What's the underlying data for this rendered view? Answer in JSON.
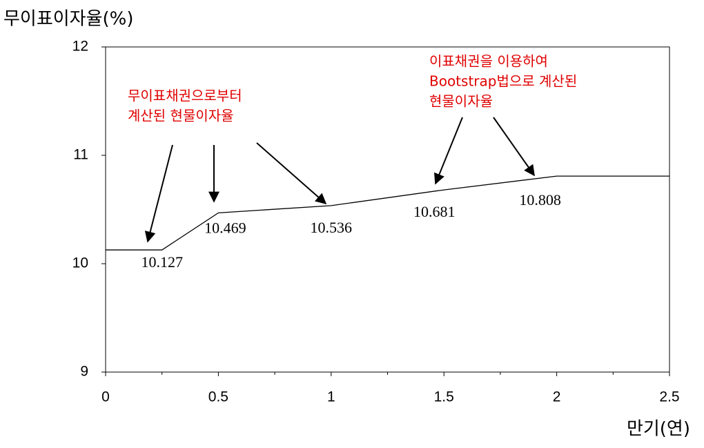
{
  "chart_data": {
    "type": "line",
    "y_label": "무이표이자율(%)",
    "x_label": "만기(연)",
    "x": [
      0,
      0.25,
      0.5,
      1,
      1.5,
      2,
      2.5
    ],
    "values": [
      10.127,
      10.127,
      10.469,
      10.536,
      10.681,
      10.808,
      10.808
    ],
    "value_labels": [
      null,
      "10.127",
      "10.469",
      "10.536",
      "10.681",
      "10.808",
      null
    ],
    "color": "#000000",
    "xlim": [
      0,
      2.5
    ],
    "xticks": [
      0,
      0.5,
      1,
      1.5,
      2,
      2.5
    ],
    "xminorticks": [
      0.25,
      0.75,
      1.25,
      1.75,
      2.25
    ],
    "ylim": [
      9,
      12
    ],
    "yticks": [
      9,
      10,
      11,
      12
    ],
    "annotations": [
      {
        "lines": [
          "무이표채권으로부터",
          "계산된 현물이자율"
        ],
        "color": "#e00000"
      },
      {
        "lines": [
          "이표채권을 이용하여",
          "Bootstrap법으로 계산된",
          "현물이자율"
        ],
        "color": "#e00000"
      }
    ]
  }
}
